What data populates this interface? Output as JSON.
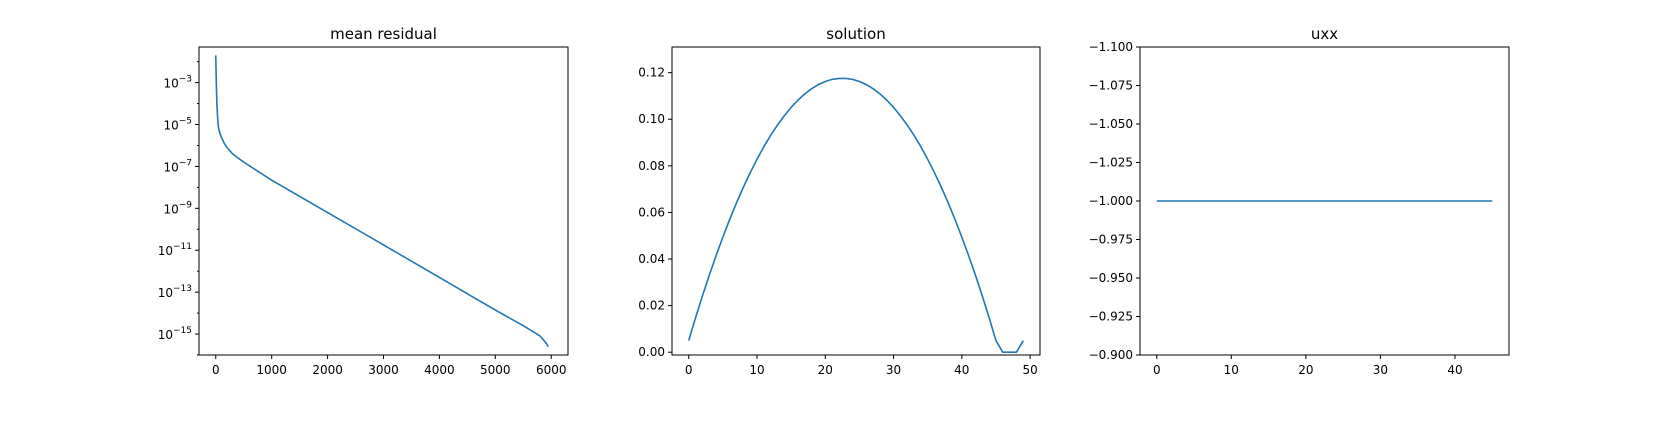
{
  "chart_data": [
    {
      "type": "line",
      "title": "mean residual",
      "xlabel": "",
      "ylabel": "",
      "yscale": "log",
      "xlim": [
        -300,
        6300
      ],
      "ylim": [
        1e-16,
        0.05
      ],
      "xticks": [
        0,
        1000,
        2000,
        3000,
        4000,
        5000,
        6000
      ],
      "xtick_labels": [
        "0",
        "1000",
        "2000",
        "3000",
        "4000",
        "5000",
        "6000"
      ],
      "yticks": [
        {
          "value": 0.001,
          "base": "10",
          "exp": "−3"
        },
        {
          "value": 1e-05,
          "base": "10",
          "exp": "−5"
        },
        {
          "value": 1e-07,
          "base": "10",
          "exp": "−7"
        },
        {
          "value": 1e-09,
          "base": "10",
          "exp": "−9"
        },
        {
          "value": 1e-11,
          "base": "10",
          "exp": "−11"
        },
        {
          "value": 1e-13,
          "base": "10",
          "exp": "−13"
        },
        {
          "value": 1e-15,
          "base": "10",
          "exp": "−15"
        }
      ],
      "color": "#1f77b4",
      "grid": false,
      "series": [
        {
          "x": [
            0,
            5,
            10,
            20,
            30,
            40,
            50,
            70,
            100,
            150,
            200,
            300,
            400,
            500,
            1000,
            2000,
            3000,
            4000,
            5000,
            5500,
            5700,
            5800,
            5900,
            5950
          ],
          "y": [
            0.02,
            0.004,
            0.0008,
            0.0001,
            3e-05,
            1.2e-05,
            7e-06,
            4e-06,
            2.5e-06,
            1.3e-06,
            8e-07,
            4e-07,
            2.5e-07,
            1.6e-07,
            2.2e-08,
            6.3e-10,
            1.8e-11,
            5e-13,
            1.4e-14,
            2.5e-15,
            1.2e-15,
            8e-16,
            4e-16,
            2.5e-16
          ]
        }
      ]
    },
    {
      "type": "line",
      "title": "solution",
      "xlabel": "",
      "ylabel": "",
      "xlim": [
        -2.45,
        51.45
      ],
      "ylim": [
        -0.0012,
        0.131
      ],
      "xticks": [
        0,
        10,
        20,
        30,
        40,
        50
      ],
      "xtick_labels": [
        "0",
        "10",
        "20",
        "30",
        "40",
        "50"
      ],
      "yticks": [
        0.0,
        0.02,
        0.04,
        0.06,
        0.08,
        0.1,
        0.12
      ],
      "ytick_labels": [
        "0.00",
        "0.02",
        "0.04",
        "0.06",
        "0.08",
        "0.10",
        "0.12"
      ],
      "color": "#1f77b4",
      "grid": false,
      "series": [
        {
          "x": [
            0,
            1,
            2,
            3,
            4,
            5,
            6,
            7,
            8,
            9,
            10,
            11,
            12,
            13,
            14,
            15,
            16,
            17,
            18,
            19,
            20,
            21,
            22,
            23,
            24,
            25,
            26,
            27,
            28,
            29,
            30,
            31,
            32,
            33,
            34,
            35,
            36,
            37,
            38,
            39,
            40,
            41,
            42,
            43,
            44,
            45,
            46,
            47,
            48,
            49
          ],
          "y": [
            0.005,
            0.0148,
            0.0241,
            0.033,
            0.0414,
            0.0494,
            0.057,
            0.0641,
            0.0708,
            0.077,
            0.0828,
            0.0882,
            0.0931,
            0.0975,
            0.1015,
            0.1051,
            0.1082,
            0.1109,
            0.1131,
            0.1149,
            0.1162,
            0.1171,
            0.1175,
            0.1175,
            0.1171,
            0.1162,
            0.1149,
            0.1131,
            0.1109,
            0.1082,
            0.1051,
            0.1015,
            0.0975,
            0.0931,
            0.0882,
            0.0828,
            0.077,
            0.0708,
            0.0641,
            0.057,
            0.0494,
            0.0414,
            0.033,
            0.0241,
            0.0148,
            0.005,
            0.0,
            0.0,
            0.0,
            0.005
          ]
        }
      ]
    },
    {
      "type": "line",
      "title": "uxx",
      "xlabel": "",
      "ylabel": "",
      "xlim": [
        -2.25,
        47.25
      ],
      "ylim": [
        -0.9,
        -1.1
      ],
      "inverted_y": true,
      "xticks": [
        0,
        10,
        20,
        30,
        40
      ],
      "xtick_labels": [
        "0",
        "10",
        "20",
        "30",
        "40"
      ],
      "yticks": [
        -1.1,
        -1.075,
        -1.05,
        -1.025,
        -1.0,
        -0.975,
        -0.95,
        -0.925,
        -0.9
      ],
      "ytick_labels": [
        "−1.100",
        "−1.075",
        "−1.050",
        "−1.025",
        "−1.000",
        "−0.975",
        "−0.950",
        "−0.925",
        "−0.900"
      ],
      "color": "#1f77b4",
      "grid": false,
      "series": [
        {
          "x": [
            0,
            45
          ],
          "y": [
            -1.0,
            -1.0
          ]
        }
      ]
    }
  ]
}
